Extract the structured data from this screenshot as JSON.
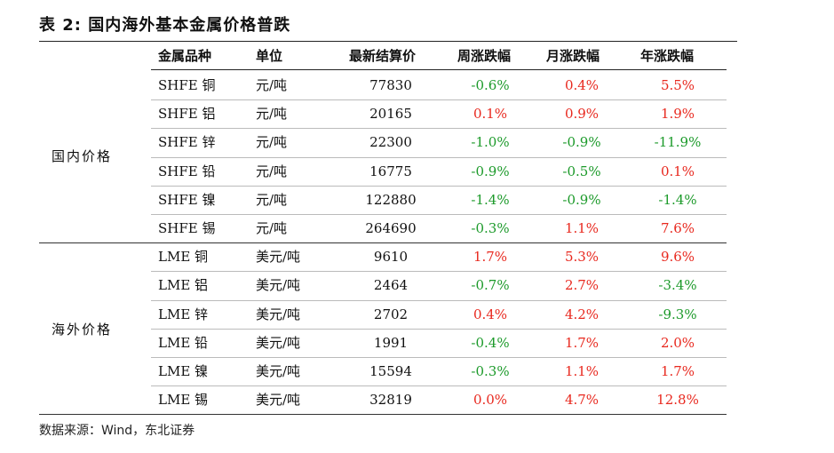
{
  "title": "表 2:  国内海外基本金属价格普跌",
  "headers": {
    "metal": "金属品种",
    "unit": "单位",
    "price": "最新结算价",
    "week": "周涨跌幅",
    "month": "月涨跌幅",
    "year": "年涨跌幅"
  },
  "groups": {
    "domestic": "国内价格",
    "overseas": "海外价格"
  },
  "rows": [
    {
      "metal": "SHFE 铜",
      "unit": "元/吨",
      "price": "77830",
      "week": "-0.6%",
      "month": "0.4%",
      "year": "5.5%"
    },
    {
      "metal": "SHFE 铝",
      "unit": "元/吨",
      "price": "20165",
      "week": "0.1%",
      "month": "0.9%",
      "year": "1.9%"
    },
    {
      "metal": "SHFE 锌",
      "unit": "元/吨",
      "price": "22300",
      "week": "-1.0%",
      "month": "-0.9%",
      "year": "-11.9%"
    },
    {
      "metal": "SHFE 铅",
      "unit": "元/吨",
      "price": "16775",
      "week": "-0.9%",
      "month": "-0.5%",
      "year": "0.1%"
    },
    {
      "metal": "SHFE 镍",
      "unit": "元/吨",
      "price": "122880",
      "week": "-1.4%",
      "month": "-0.9%",
      "year": "-1.4%"
    },
    {
      "metal": "SHFE 锡",
      "unit": "元/吨",
      "price": "264690",
      "week": "-0.3%",
      "month": "1.1%",
      "year": "7.6%"
    },
    {
      "metal": "LME 铜",
      "unit": "美元/吨",
      "price": "9610",
      "week": "1.7%",
      "month": "5.3%",
      "year": "9.6%"
    },
    {
      "metal": "LME 铝",
      "unit": "美元/吨",
      "price": "2464",
      "week": "-0.7%",
      "month": "2.7%",
      "year": "-3.4%"
    },
    {
      "metal": "LME 锌",
      "unit": "美元/吨",
      "price": "2702",
      "week": "0.4%",
      "month": "4.2%",
      "year": "-9.3%"
    },
    {
      "metal": "LME 铅",
      "unit": "美元/吨",
      "price": "1991",
      "week": "-0.4%",
      "month": "1.7%",
      "year": "2.0%"
    },
    {
      "metal": "LME 镍",
      "unit": "美元/吨",
      "price": "15594",
      "week": "-0.3%",
      "month": "1.1%",
      "year": "1.7%"
    },
    {
      "metal": "LME 锡",
      "unit": "美元/吨",
      "price": "32819",
      "week": "0.0%",
      "month": "4.7%",
      "year": "12.8%"
    }
  ],
  "colors": {
    "up": "#e8281e",
    "down": "#1c9a2a"
  },
  "source": "数据来源：Wind，东北证券"
}
